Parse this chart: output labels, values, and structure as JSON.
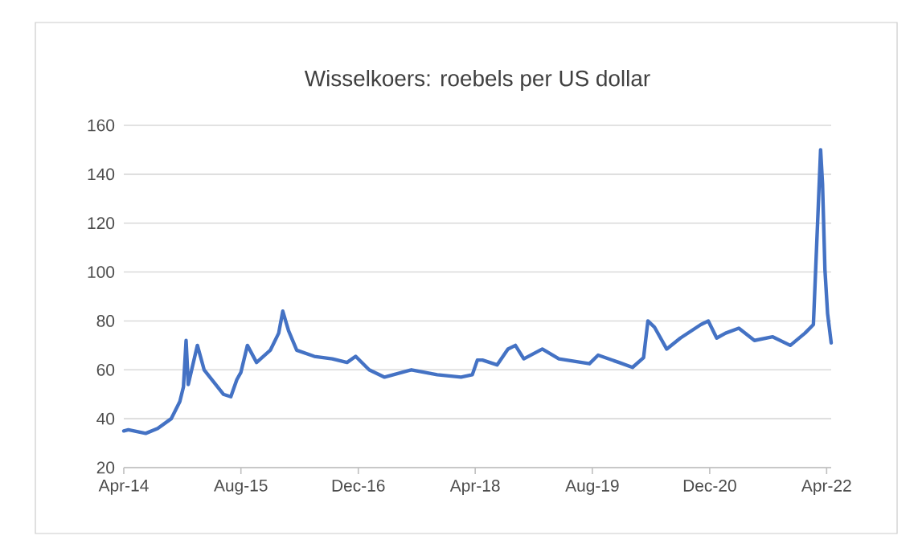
{
  "chart_data": {
    "type": "line",
    "title": "Wisselkoers: roebels per US dollar",
    "x": [
      "2014-04-01",
      "2014-04-20",
      "2014-07-01",
      "2014-08-20",
      "2014-10-15",
      "2014-11-20",
      "2014-12-05",
      "2014-12-16",
      "2014-12-25",
      "2015-02-01",
      "2015-03-01",
      "2015-05-20",
      "2015-06-20",
      "2015-07-15",
      "2015-08-01",
      "2015-08-28",
      "2015-10-05",
      "2015-12-01",
      "2016-01-05",
      "2016-01-22",
      "2016-02-15",
      "2016-03-20",
      "2016-06-01",
      "2016-08-15",
      "2016-10-15",
      "2016-11-20",
      "2017-01-15",
      "2017-03-20",
      "2017-07-10",
      "2017-10-25",
      "2018-02-01",
      "2018-03-20",
      "2018-04-10",
      "2018-05-01",
      "2018-07-01",
      "2018-08-15",
      "2018-09-15",
      "2018-10-20",
      "2019-01-05",
      "2019-03-15",
      "2019-07-20",
      "2019-08-25",
      "2019-11-20",
      "2020-01-15",
      "2020-03-01",
      "2020-03-19",
      "2020-04-15",
      "2020-06-05",
      "2020-08-01",
      "2020-10-25",
      "2020-11-25",
      "2020-12-30",
      "2021-02-05",
      "2021-04-01",
      "2021-06-05",
      "2021-08-20",
      "2021-11-01",
      "2022-01-01",
      "2022-02-05",
      "2022-03-07",
      "2022-03-15",
      "2022-03-25",
      "2022-04-05",
      "2022-04-20"
    ],
    "series": [
      {
        "color": "#4472c4",
        "values": [
          35,
          35.5,
          34,
          36,
          40,
          47,
          53,
          72,
          54,
          70,
          60,
          50,
          49,
          56,
          59,
          70,
          63,
          68,
          75,
          84,
          76,
          68,
          65.5,
          64.5,
          63,
          65.5,
          60,
          57,
          60,
          58,
          57,
          58,
          64,
          64,
          62,
          68.5,
          70,
          64.5,
          68.5,
          64.5,
          62.5,
          66,
          63,
          61,
          65,
          80,
          77.5,
          68.5,
          73,
          78.5,
          80,
          73,
          75,
          77,
          72,
          73.5,
          70,
          75,
          78.5,
          150,
          136,
          101,
          83,
          71
        ]
      }
    ],
    "xlim": [
      "2014-04-01",
      "2022-04-20"
    ],
    "xticks": [
      {
        "value": "2014-04-01",
        "label": "Apr-14"
      },
      {
        "value": "2015-08-01",
        "label": "Aug-15"
      },
      {
        "value": "2016-12-01",
        "label": "Dec-16"
      },
      {
        "value": "2018-04-01",
        "label": "Apr-18"
      },
      {
        "value": "2019-08-01",
        "label": "Aug-19"
      },
      {
        "value": "2020-12-01",
        "label": "Dec-20"
      },
      {
        "value": "2022-04-01",
        "label": "Apr-22"
      }
    ],
    "ylim": [
      20,
      160
    ],
    "yticks": [
      20,
      40,
      60,
      80,
      100,
      120,
      140,
      160
    ],
    "grid": "y",
    "marker": "none",
    "line_style": "solid"
  }
}
